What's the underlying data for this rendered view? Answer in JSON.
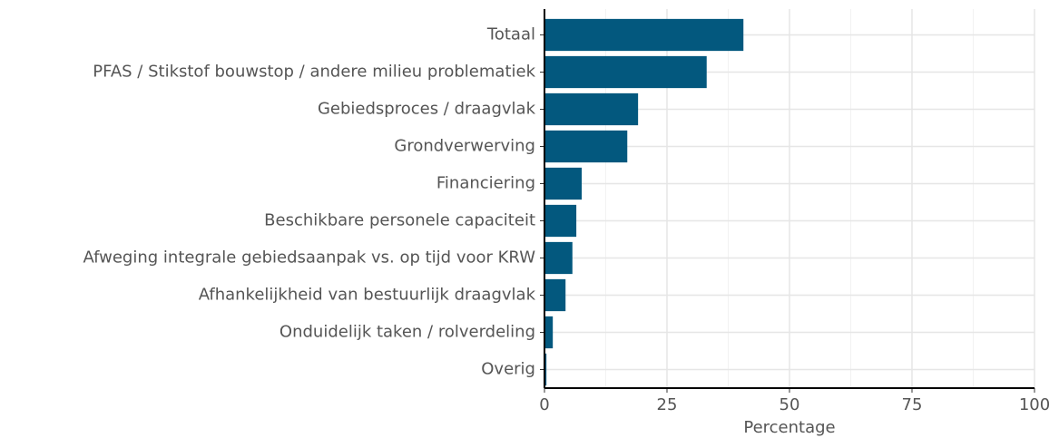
{
  "chart_data": {
    "type": "bar",
    "orientation": "horizontal",
    "x_label": "Percentage",
    "categories": [
      "Totaal",
      "PFAS / Stikstof bouwstop / andere milieu problematiek",
      "Gebiedsproces / draagvlak",
      "Grondverwerving",
      "Financiering",
      "Beschikbare personele capaciteit",
      "Afweging integrale gebiedsaanpak vs. op tijd voor KRW",
      "Afhankelijkheid van bestuurlijk draagvlak",
      "Onduidelijk taken / rolverdeling",
      "Overig"
    ],
    "values": [
      40.6,
      33.1,
      19.1,
      16.9,
      7.6,
      6.5,
      5.7,
      4.3,
      1.7,
      0.4
    ],
    "color": "#03587e",
    "xlim": [
      0,
      100
    ],
    "xticks": [
      0,
      25,
      50,
      75,
      100
    ],
    "grid": true
  }
}
